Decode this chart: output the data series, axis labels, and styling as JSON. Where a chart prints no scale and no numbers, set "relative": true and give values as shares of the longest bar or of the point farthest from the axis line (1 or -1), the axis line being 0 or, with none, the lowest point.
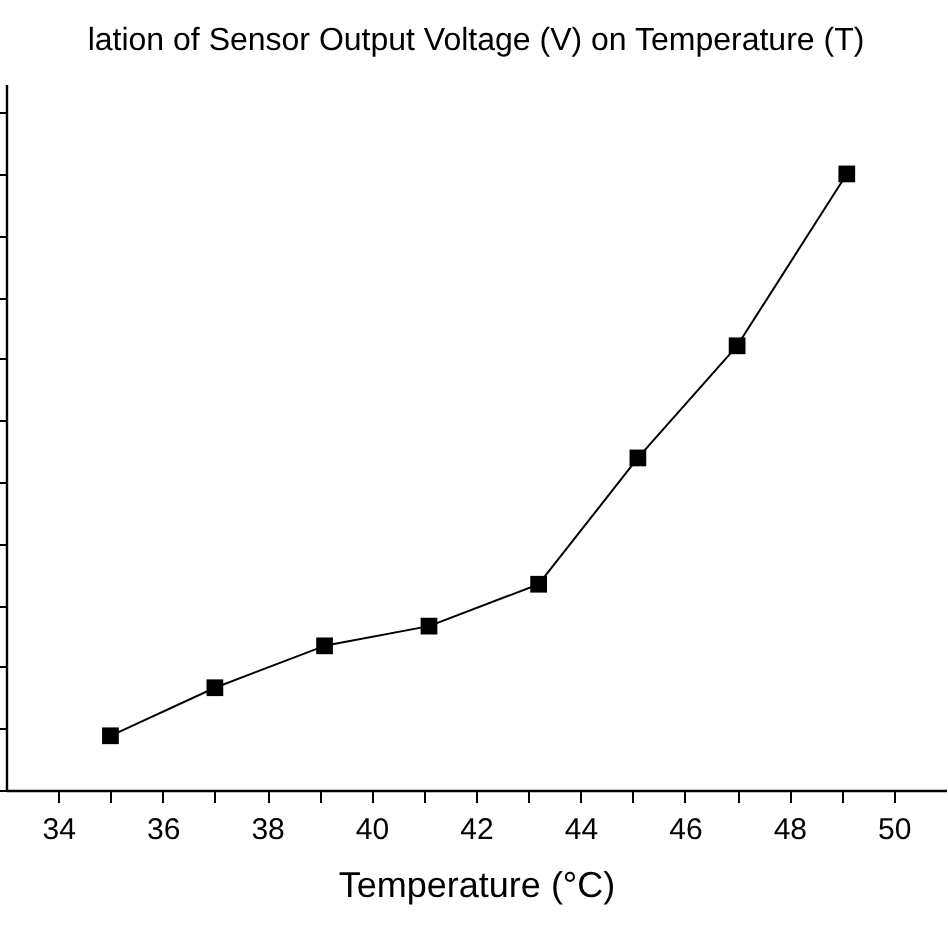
{
  "chart_data": {
    "type": "line",
    "title": "lation of Sensor Output Voltage (V) on Temperature (T)",
    "xlabel": "Temperature (°C)",
    "relative": true,
    "marker": "square",
    "x": [
      35,
      37,
      39.1,
      41.1,
      43.2,
      45.1,
      47,
      49.1
    ],
    "series": [
      {
        "color": "#000000",
        "values": [
          0.088,
          0.166,
          0.234,
          0.266,
          0.334,
          0.539,
          0.721,
          1
        ]
      }
    ],
    "xlim": [
      33,
      51
    ],
    "xticks": [
      34,
      {
        "value": 35,
        "label": null
      },
      36,
      {
        "value": 37,
        "label": null
      },
      38,
      {
        "value": 39,
        "label": null
      },
      40,
      {
        "value": 41,
        "label": null
      },
      42,
      {
        "value": 43,
        "label": null
      },
      44,
      {
        "value": 45,
        "label": null
      },
      46,
      {
        "value": 47,
        "label": null
      },
      48,
      {
        "value": 49,
        "label": null
      },
      50
    ],
    "grid": false,
    "legend": false
  }
}
